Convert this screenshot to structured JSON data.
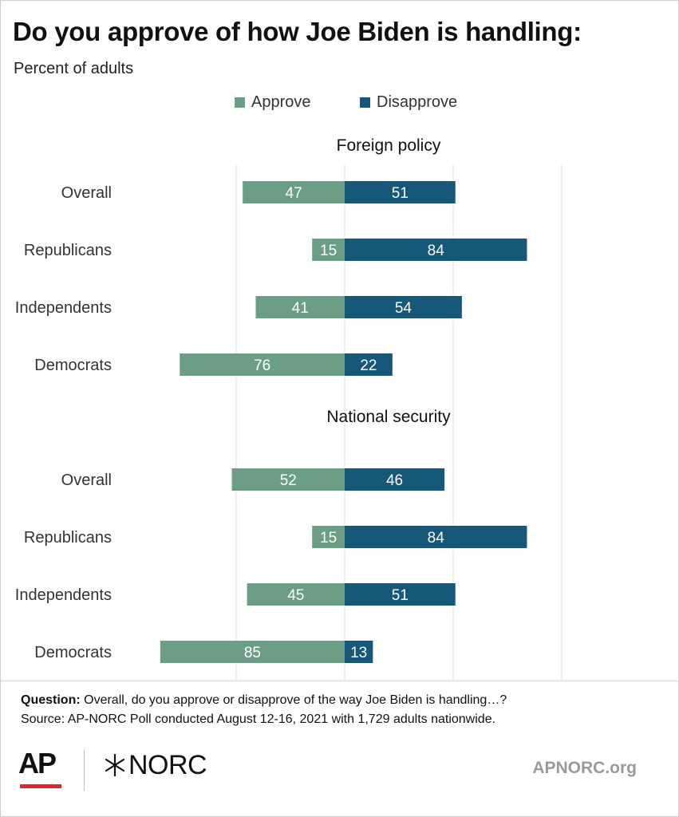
{
  "header": {
    "title": "Do you approve of how Joe Biden is handling:",
    "subtitle": "Percent of adults"
  },
  "legend": [
    {
      "label": "Approve",
      "color": "#6b9e84"
    },
    {
      "label": "Disapprove",
      "color": "#17577a"
    }
  ],
  "chart_data": [
    {
      "type": "bar",
      "orientation": "horizontal-diverging",
      "title": "Foreign policy",
      "categories": [
        "Overall",
        "Republicans",
        "Independents",
        "Democrats"
      ],
      "series": [
        {
          "name": "Approve",
          "values": [
            47,
            15,
            41,
            76
          ],
          "color": "#6b9e84"
        },
        {
          "name": "Disapprove",
          "values": [
            51,
            84,
            54,
            22
          ],
          "color": "#17577a"
        }
      ],
      "xlim": [
        -100,
        100
      ],
      "grid": true
    },
    {
      "type": "bar",
      "orientation": "horizontal-diverging",
      "title": "National security",
      "categories": [
        "Overall",
        "Republicans",
        "Independents",
        "Democrats"
      ],
      "series": [
        {
          "name": "Approve",
          "values": [
            52,
            15,
            45,
            85
          ],
          "color": "#6b9e84"
        },
        {
          "name": "Disapprove",
          "values": [
            46,
            84,
            51,
            13
          ],
          "color": "#17577a"
        }
      ],
      "xlim": [
        -100,
        100
      ],
      "grid": true
    }
  ],
  "footer": {
    "question_label": "Question:",
    "question_text": " Overall, do you approve or disapprove of the way Joe Biden is handling…?",
    "source": "Source: AP-NORC Poll conducted August 12-16, 2021 with 1,729 adults nationwide.",
    "ap_logo": "AP",
    "norc_logo": "NORC",
    "site": "APNORC.org"
  }
}
